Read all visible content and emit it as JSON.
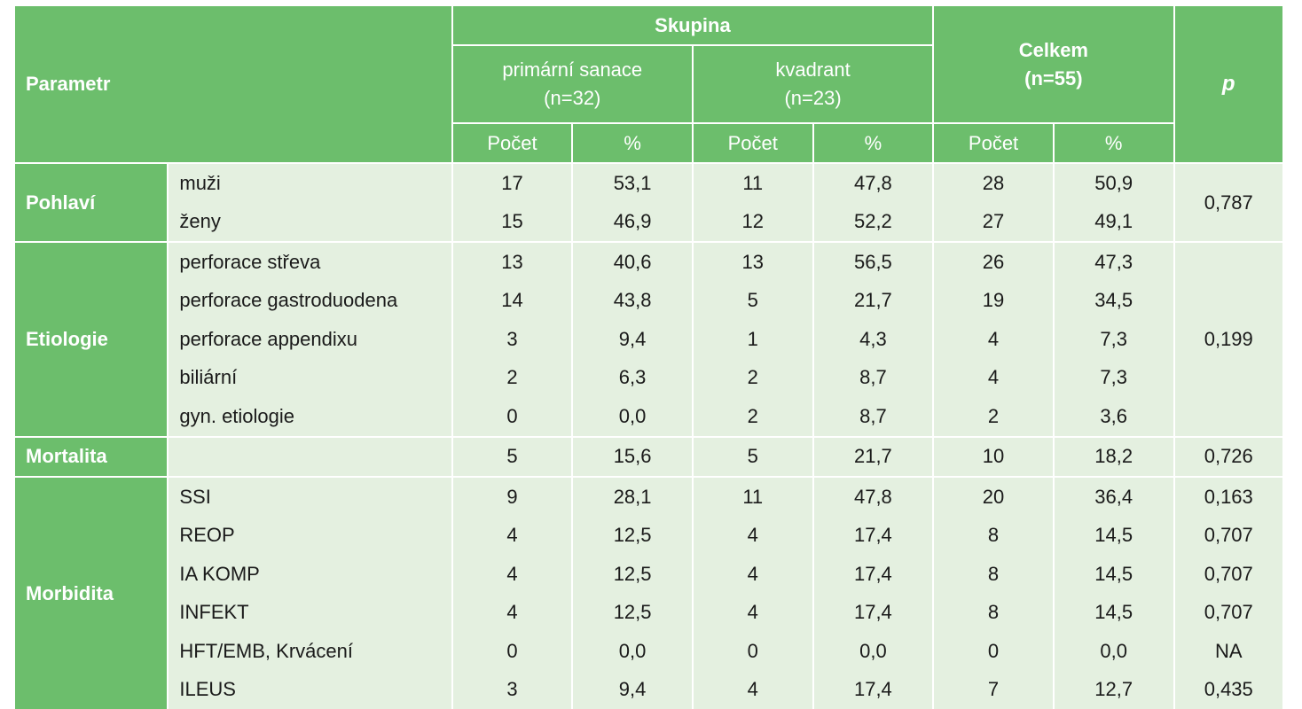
{
  "header": {
    "parametr": "Parametr",
    "skupina": "Skupina",
    "group1_name": "primární sanace",
    "group1_n": "(n=32)",
    "group2_name": "kvadrant",
    "group2_n": "(n=23)",
    "celkem": "Celkem",
    "celkem_n": "(n=55)",
    "p": "p",
    "pocet": "Počet",
    "percent": "%"
  },
  "groups": {
    "pohlavi": "Pohlaví",
    "etiologie": "Etiologie",
    "mortalita": "Mortalita",
    "morbidita": "Morbidita"
  },
  "rows": [
    {
      "label": "muži",
      "c1": "17",
      "p1": "53,1",
      "c2": "11",
      "p2": "47,8",
      "ct": "28",
      "pt": "50,9",
      "pval": "0,787"
    },
    {
      "label": "ženy",
      "c1": "15",
      "p1": "46,9",
      "c2": "12",
      "p2": "52,2",
      "ct": "27",
      "pt": "49,1"
    },
    {
      "label": "perforace střeva",
      "c1": "13",
      "p1": "40,6",
      "c2": "13",
      "p2": "56,5",
      "ct": "26",
      "pt": "47,3",
      "pval": "0,199"
    },
    {
      "label": "perforace gastroduodena",
      "c1": "14",
      "p1": "43,8",
      "c2": "5",
      "p2": "21,7",
      "ct": "19",
      "pt": "34,5"
    },
    {
      "label": "perforace appendixu",
      "c1": "3",
      "p1": "9,4",
      "c2": "1",
      "p2": "4,3",
      "ct": "4",
      "pt": "7,3"
    },
    {
      "label": "biliární",
      "c1": "2",
      "p1": "6,3",
      "c2": "2",
      "p2": "8,7",
      "ct": "4",
      "pt": "7,3"
    },
    {
      "label": "gyn. etiologie",
      "c1": "0",
      "p1": "0,0",
      "c2": "2",
      "p2": "8,7",
      "ct": "2",
      "pt": "3,6"
    },
    {
      "label": "",
      "c1": "5",
      "p1": "15,6",
      "c2": "5",
      "p2": "21,7",
      "ct": "10",
      "pt": "18,2",
      "pval": "0,726"
    },
    {
      "label": "SSI",
      "c1": "9",
      "p1": "28,1",
      "c2": "11",
      "p2": "47,8",
      "ct": "20",
      "pt": "36,4",
      "pval": "0,163"
    },
    {
      "label": "REOP",
      "c1": "4",
      "p1": "12,5",
      "c2": "4",
      "p2": "17,4",
      "ct": "8",
      "pt": "14,5",
      "pval": "0,707"
    },
    {
      "label": "IA KOMP",
      "c1": "4",
      "p1": "12,5",
      "c2": "4",
      "p2": "17,4",
      "ct": "8",
      "pt": "14,5",
      "pval": "0,707"
    },
    {
      "label": "INFEKT",
      "c1": "4",
      "p1": "12,5",
      "c2": "4",
      "p2": "17,4",
      "ct": "8",
      "pt": "14,5",
      "pval": "0,707"
    },
    {
      "label": "HFT/EMB, Krvácení",
      "c1": "0",
      "p1": "0,0",
      "c2": "0",
      "p2": "0,0",
      "ct": "0",
      "pt": "0,0",
      "pval": "NA"
    },
    {
      "label": "ILEUS",
      "c1": "3",
      "p1": "9,4",
      "c2": "4",
      "p2": "17,4",
      "ct": "7",
      "pt": "12,7",
      "pval": "0,435"
    }
  ],
  "colors": {
    "header_green": "#6cbe6c",
    "body_light_green": "#e4f0e0",
    "header_text": "#ffffff"
  }
}
